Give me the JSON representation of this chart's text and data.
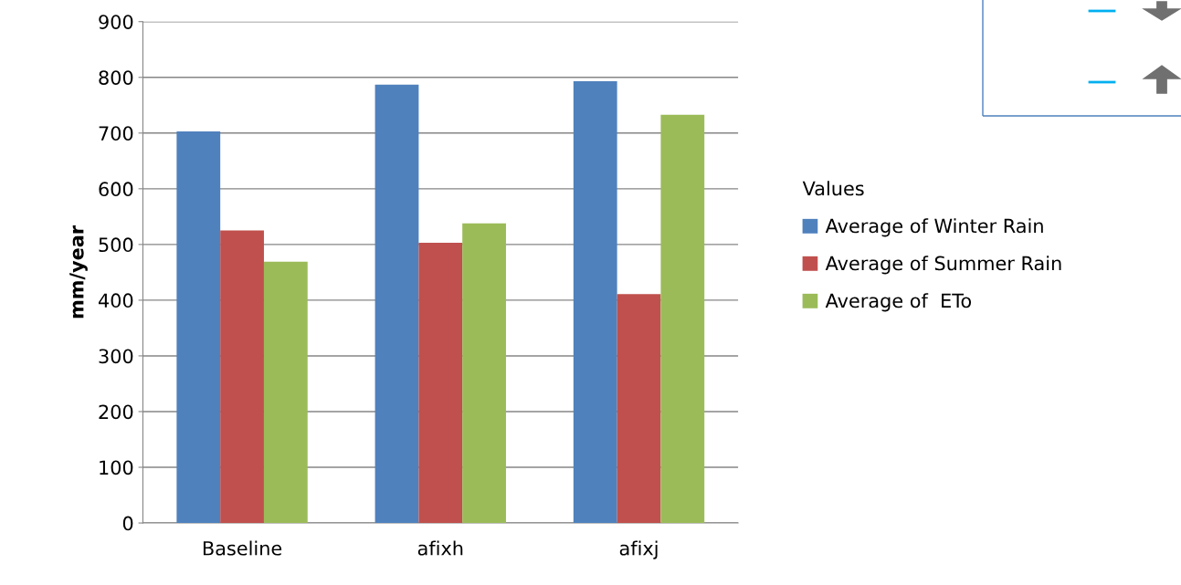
{
  "chart_data": {
    "type": "bar",
    "ylabel": "mm/year",
    "legend_title": "Values",
    "categories": [
      "Baseline",
      "afixh",
      "afixj"
    ],
    "series": [
      {
        "name": "Average of Winter Rain",
        "color": "#4f81bd",
        "values": [
          703,
          787,
          793
        ]
      },
      {
        "name": "Average of Summer Rain",
        "color": "#c0504d",
        "values": [
          525,
          503,
          411
        ]
      },
      {
        "name": "Average of  ETo",
        "color": "#9bbb59",
        "values": [
          469,
          538,
          733
        ]
      }
    ],
    "ylim": [
      0,
      900
    ],
    "yticks": [
      0,
      100,
      200,
      300,
      400,
      500,
      600,
      700,
      800,
      900
    ],
    "grid": "y",
    "legend": "right"
  }
}
